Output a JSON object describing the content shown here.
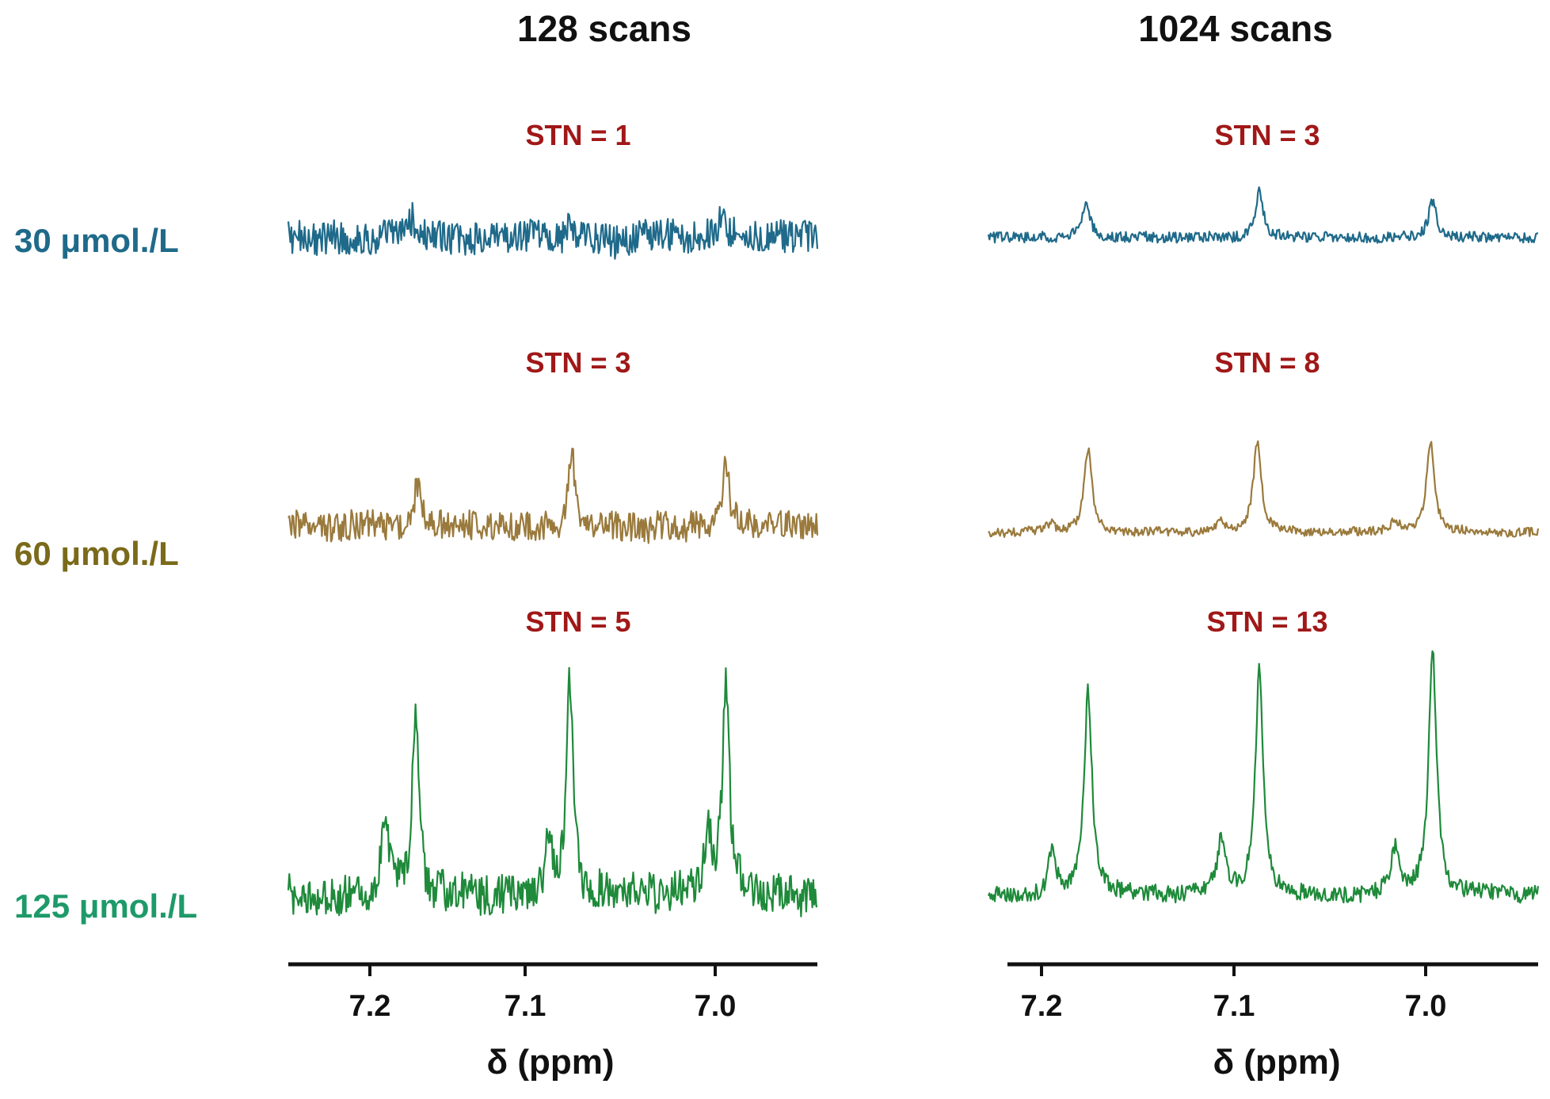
{
  "chart_data": [
    {
      "type": "line",
      "title": "128 scans",
      "xlabel": "δ (ppm)",
      "ylabel": "",
      "xlim": [
        7.235,
        6.94
      ],
      "x_reversed": true,
      "x_ticks": [
        "7.2",
        "7.1",
        "7.0"
      ],
      "y_axis": false,
      "series": [
        {
          "name": "30 μmol./L",
          "annotation": "STN = 1",
          "color": "#1f6a8a",
          "peaks": [
            [
              7.166,
              0.22
            ],
            [
              7.078,
              0.15
            ],
            [
              6.993,
              0.3
            ]
          ],
          "noise": 0.38
        },
        {
          "name": "60 μmol./L",
          "annotation": "STN = 3",
          "color": "#9a7a3c",
          "peaks": [
            [
              7.163,
              0.5
            ],
            [
              7.077,
              0.85
            ],
            [
              6.991,
              0.75
            ]
          ],
          "noise": 0.34
        },
        {
          "name": "125 μmol./L",
          "annotation": "STN = 5",
          "color": "#1e8a3a",
          "peaks": [
            [
              7.181,
              0.38
            ],
            [
              7.164,
              1.05
            ],
            [
              7.09,
              0.3
            ],
            [
              7.078,
              1.2
            ],
            [
              7.001,
              0.35
            ],
            [
              6.991,
              1.2
            ]
          ],
          "noise": 0.22
        }
      ]
    },
    {
      "type": "line",
      "title": "1024 scans",
      "xlabel": "δ (ppm)",
      "ylabel": "",
      "xlim": [
        7.222,
        6.946
      ],
      "x_reversed": true,
      "x_ticks": [
        "7.2",
        "7.1",
        "7.0"
      ],
      "y_axis": false,
      "series": [
        {
          "name": "30 μmol./L",
          "annotation": "STN = 3",
          "color": "#1f6a8a",
          "peaks": [
            [
              7.173,
              0.38
            ],
            [
              7.086,
              0.55
            ],
            [
              6.999,
              0.42
            ]
          ],
          "noise": 0.12
        },
        {
          "name": "60 μmol./L",
          "annotation": "STN = 8",
          "color": "#9a7a3c",
          "peaks": [
            [
              7.191,
              0.1
            ],
            [
              7.172,
              0.95
            ],
            [
              7.105,
              0.12
            ],
            [
              7.087,
              1.05
            ],
            [
              7.018,
              0.12
            ],
            [
              7.0,
              1.05
            ]
          ],
          "noise": 0.1
        },
        {
          "name": "125 μmol./L",
          "annotation": "STN = 13",
          "color": "#1e8a3a",
          "peaks": [
            [
              7.19,
              0.22
            ],
            [
              7.172,
              1.1
            ],
            [
              7.105,
              0.3
            ],
            [
              7.086,
              1.2
            ],
            [
              7.018,
              0.25
            ],
            [
              6.999,
              1.3
            ]
          ],
          "noise": 0.09
        }
      ]
    }
  ]
}
